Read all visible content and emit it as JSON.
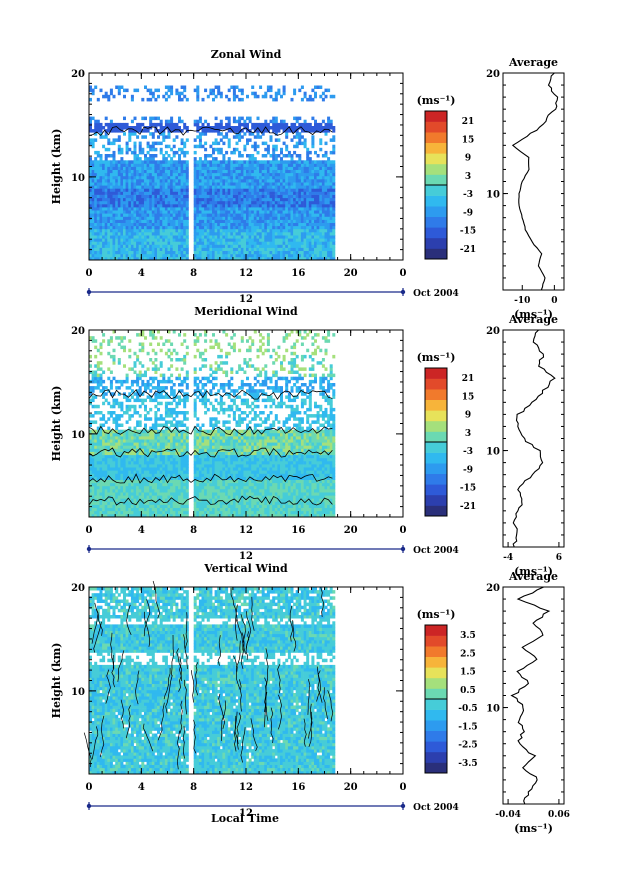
{
  "date_label": "Oct 2004",
  "xlabel": "Local Time",
  "colors": {
    "colormap": [
      "#2a2f7a",
      "#2c3fae",
      "#2e5ad8",
      "#2f7be9",
      "#2d9bef",
      "#30b9ef",
      "#46ccd8",
      "#6bd9b2",
      "#a5e07c",
      "#e7e25a",
      "#f7b43a",
      "#f17a2c",
      "#e24a2a",
      "#cc2525"
    ]
  },
  "chart_data": [
    {
      "type": "heatmap",
      "title": "Zonal Wind",
      "ylabel": "Height (km)",
      "unit": "(ms⁻¹)",
      "xlim": [
        0,
        24
      ],
      "ylim": [
        2,
        20
      ],
      "x_ticks": [
        "0",
        "4",
        "8",
        "12",
        "16",
        "20",
        "0"
      ],
      "y_ticks": [
        "10",
        "20"
      ],
      "day_label": "12",
      "colorbar_ticks": [
        "21",
        "15",
        "9",
        "3",
        "-3",
        "-9",
        "-15",
        "-21"
      ],
      "data_extent_hours": [
        0,
        18.7
      ],
      "average": {
        "title": "Average",
        "xlabel": "(ms⁻¹)",
        "x_ticks": [
          "-10",
          "0"
        ],
        "xlim": [
          -16,
          3
        ],
        "profile": [
          {
            "height": 2,
            "value": -4
          },
          {
            "height": 3,
            "value": -3
          },
          {
            "height": 4,
            "value": -5
          },
          {
            "height": 5,
            "value": -4
          },
          {
            "height": 6,
            "value": -7
          },
          {
            "height": 7,
            "value": -9
          },
          {
            "height": 8,
            "value": -10
          },
          {
            "height": 9,
            "value": -11
          },
          {
            "height": 10,
            "value": -11
          },
          {
            "height": 11,
            "value": -10
          },
          {
            "height": 12,
            "value": -8
          },
          {
            "height": 13,
            "value": -8
          },
          {
            "height": 14,
            "value": -13
          },
          {
            "height": 15,
            "value": -7
          },
          {
            "height": 16,
            "value": -3
          },
          {
            "height": 17,
            "value": 0
          },
          {
            "height": 18,
            "value": 1
          },
          {
            "height": 19,
            "value": -2
          },
          {
            "height": 20,
            "value": 0
          }
        ]
      }
    },
    {
      "type": "heatmap",
      "title": "Meridional Wind",
      "ylabel": "Height (km)",
      "unit": "(ms⁻¹)",
      "xlim": [
        0,
        24
      ],
      "ylim": [
        2,
        20
      ],
      "x_ticks": [
        "0",
        "4",
        "8",
        "12",
        "16",
        "20",
        "0"
      ],
      "y_ticks": [
        "10",
        "20"
      ],
      "day_label": "12",
      "colorbar_ticks": [
        "21",
        "15",
        "9",
        "3",
        "-3",
        "-9",
        "-15",
        "-21"
      ],
      "data_extent_hours": [
        0,
        18.7
      ],
      "average": {
        "title": "Average",
        "xlabel": "(ms⁻¹)",
        "x_ticks": [
          "-4",
          "6"
        ],
        "xlim": [
          -5,
          7
        ],
        "profile": [
          {
            "height": 2,
            "value": -3
          },
          {
            "height": 3,
            "value": -2
          },
          {
            "height": 4,
            "value": -3
          },
          {
            "height": 5,
            "value": -2
          },
          {
            "height": 6,
            "value": -1
          },
          {
            "height": 7,
            "value": -2
          },
          {
            "height": 8,
            "value": 1
          },
          {
            "height": 9,
            "value": 3
          },
          {
            "height": 10,
            "value": 2
          },
          {
            "height": 11,
            "value": -1
          },
          {
            "height": 12,
            "value": -2
          },
          {
            "height": 13,
            "value": -2
          },
          {
            "height": 14,
            "value": 1
          },
          {
            "height": 15,
            "value": 3
          },
          {
            "height": 16,
            "value": 5
          },
          {
            "height": 17,
            "value": 2
          },
          {
            "height": 18,
            "value": 3
          },
          {
            "height": 19,
            "value": 1
          },
          {
            "height": 20,
            "value": 2
          }
        ]
      }
    },
    {
      "type": "heatmap",
      "title": "Vertical Wind",
      "ylabel": "Height (km)",
      "unit": "(ms⁻¹)",
      "xlim": [
        0,
        24
      ],
      "ylim": [
        2,
        20
      ],
      "x_ticks": [
        "0",
        "4",
        "8",
        "12",
        "16",
        "20",
        "0"
      ],
      "y_ticks": [
        "10",
        "20"
      ],
      "day_label": "12",
      "colorbar_ticks": [
        "3.5",
        "2.5",
        "1.5",
        "0.5",
        "-0.5",
        "-1.5",
        "-2.5",
        "-3.5"
      ],
      "data_extent_hours": [
        0,
        18.7
      ],
      "average": {
        "title": "Average",
        "xlabel": "(ms⁻¹)",
        "x_ticks": [
          "-0.04",
          "0.06"
        ],
        "xlim": [
          -0.05,
          0.07
        ],
        "profile": [
          {
            "height": 2,
            "value": -0.01
          },
          {
            "height": 3,
            "value": 0.0
          },
          {
            "height": 4,
            "value": 0.02
          },
          {
            "height": 5,
            "value": -0.01
          },
          {
            "height": 6,
            "value": 0.01
          },
          {
            "height": 7,
            "value": -0.02
          },
          {
            "height": 8,
            "value": -0.01
          },
          {
            "height": 9,
            "value": -0.02
          },
          {
            "height": 10,
            "value": -0.01
          },
          {
            "height": 11,
            "value": -0.03
          },
          {
            "height": 12,
            "value": 0.0
          },
          {
            "height": 13,
            "value": -0.02
          },
          {
            "height": 14,
            "value": 0.02
          },
          {
            "height": 15,
            "value": -0.01
          },
          {
            "height": 16,
            "value": 0.03
          },
          {
            "height": 17,
            "value": 0.01
          },
          {
            "height": 18,
            "value": 0.04
          },
          {
            "height": 19,
            "value": -0.02
          },
          {
            "height": 20,
            "value": 0.03
          }
        ]
      }
    }
  ]
}
